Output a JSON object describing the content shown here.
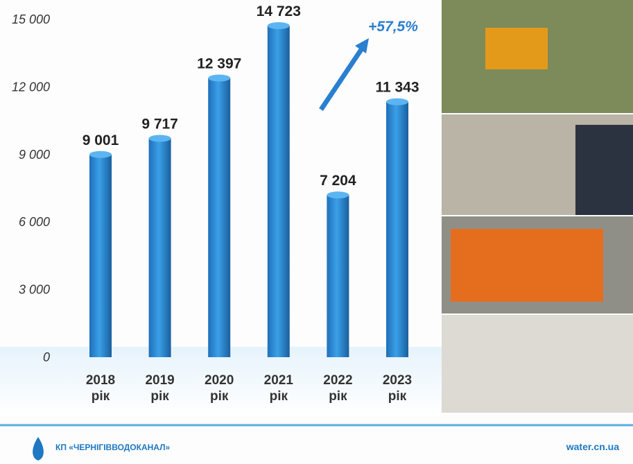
{
  "chart_data": {
    "type": "bar",
    "categories": [
      "2018 рік",
      "2019 рік",
      "2020 рік",
      "2021 рік",
      "2022 рік",
      "2023 рік"
    ],
    "values": [
      9001,
      9717,
      12397,
      14723,
      7204,
      11343
    ],
    "value_labels": [
      "9 001",
      "9 717",
      "12 397",
      "14 723",
      "7 204",
      "11 343"
    ],
    "color": "#2a8ad4",
    "ylim": [
      0,
      15000
    ],
    "yticks": [
      0,
      {
        "value": 3000,
        "label": "3 000"
      },
      {
        "value": 6000,
        "label": "6 000"
      },
      {
        "value": 9000,
        "label": "9 000"
      },
      {
        "value": 12000,
        "label": "12 000"
      },
      {
        "value": 15000,
        "label": "15 000"
      }
    ],
    "annotation": "+57,5%"
  },
  "footer": {
    "organization": "КП «ЧЕРНІГІВВОДОКАНАЛ»",
    "website": "water.cn.ua"
  }
}
